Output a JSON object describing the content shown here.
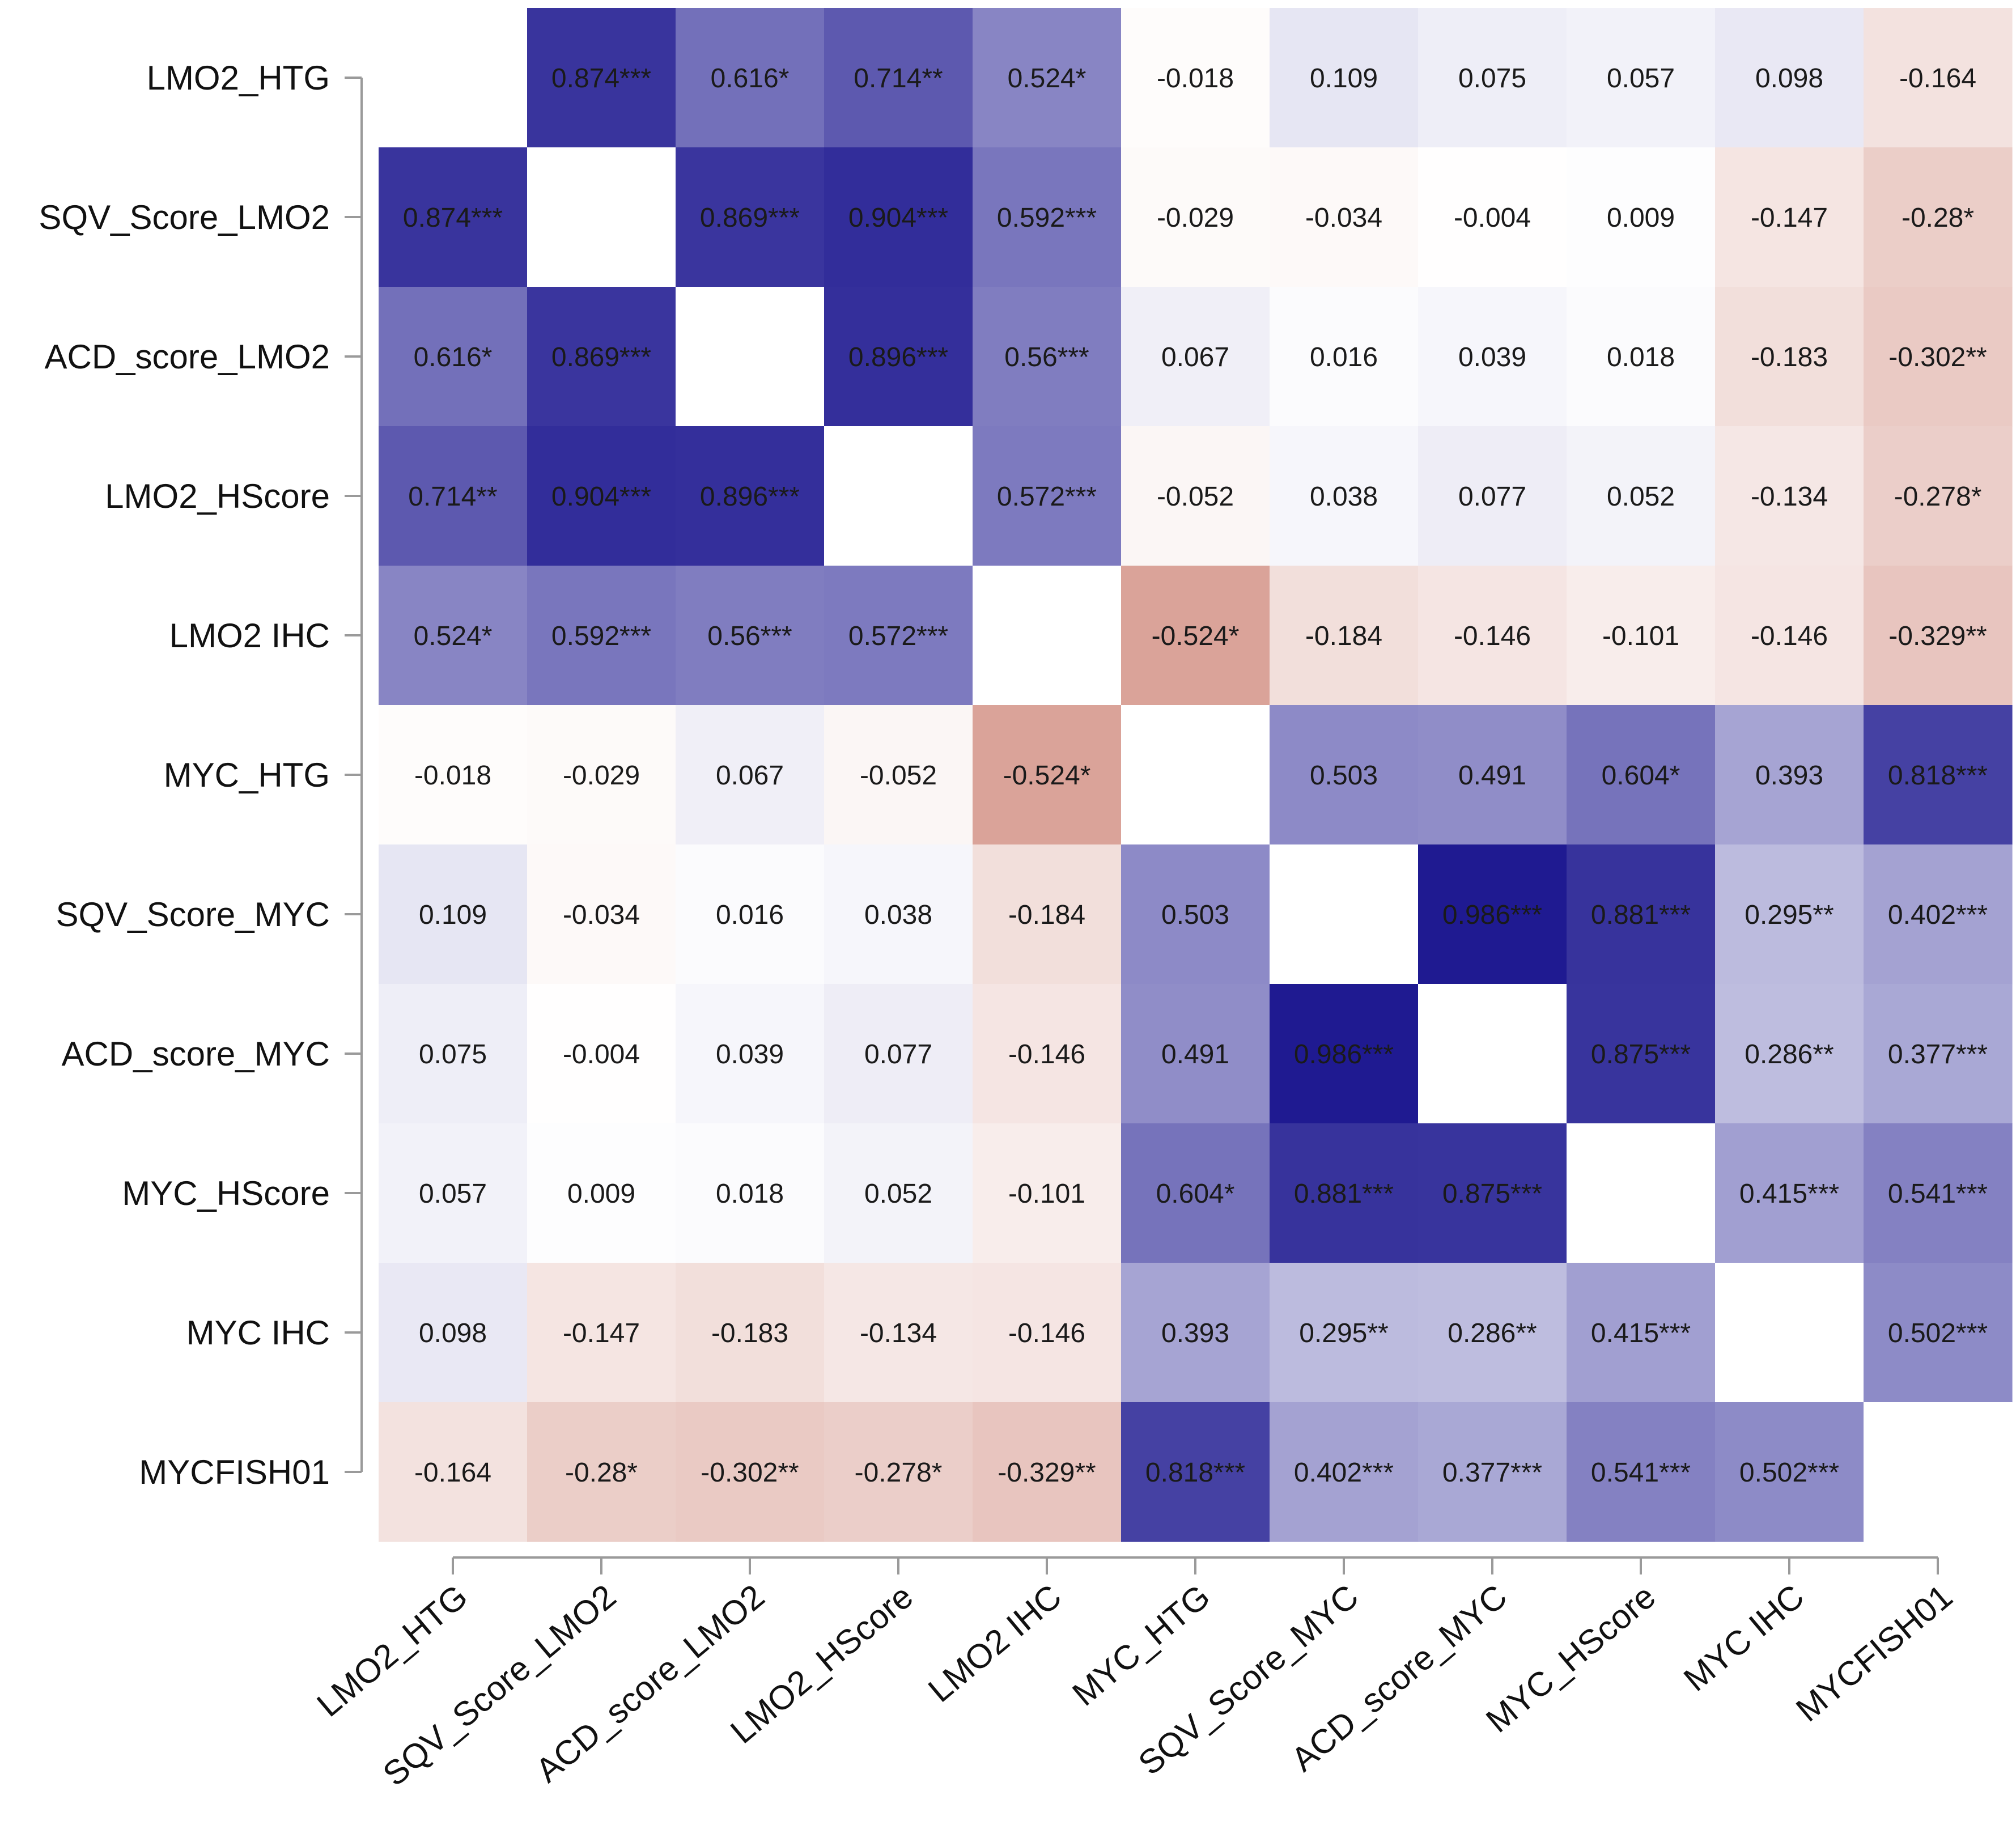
{
  "chart_data": {
    "type": "heatmap",
    "title": "",
    "xlabel": "",
    "ylabel": "",
    "color_scale": {
      "min": -1,
      "max": 1,
      "negative_color": "#b84f3c",
      "zero_color": "#ffffff",
      "positive_color": "#1c178f"
    },
    "labels": [
      "LMO2_HTG",
      "SQV_Score_LMO2",
      "ACD_score_LMO2",
      "LMO2_HScore",
      "LMO2 IHC",
      "MYC_HTG",
      "SQV_Score_MYC",
      "ACD_score_MYC",
      "MYC_HScore",
      "MYC IHC",
      "MYCFISH01"
    ],
    "values": [
      [
        null,
        0.874,
        0.616,
        0.714,
        0.524,
        -0.018,
        0.109,
        0.075,
        0.057,
        0.098,
        -0.164
      ],
      [
        0.874,
        null,
        0.869,
        0.904,
        0.592,
        -0.029,
        -0.034,
        -0.004,
        0.009,
        -0.147,
        -0.28
      ],
      [
        0.616,
        0.869,
        null,
        0.896,
        0.56,
        0.067,
        0.016,
        0.039,
        0.018,
        -0.183,
        -0.302
      ],
      [
        0.714,
        0.904,
        0.896,
        null,
        0.572,
        -0.052,
        0.038,
        0.077,
        0.052,
        -0.134,
        -0.278
      ],
      [
        0.524,
        0.592,
        0.56,
        0.572,
        null,
        -0.524,
        -0.184,
        -0.146,
        -0.101,
        -0.146,
        -0.329
      ],
      [
        -0.018,
        -0.029,
        0.067,
        -0.052,
        -0.524,
        null,
        0.503,
        0.491,
        0.604,
        0.393,
        0.818
      ],
      [
        0.109,
        -0.034,
        0.016,
        0.038,
        -0.184,
        0.503,
        null,
        0.986,
        0.881,
        0.295,
        0.402
      ],
      [
        0.075,
        -0.004,
        0.039,
        0.077,
        -0.146,
        0.491,
        0.986,
        null,
        0.875,
        0.286,
        0.377
      ],
      [
        0.057,
        0.009,
        0.018,
        0.052,
        -0.101,
        0.604,
        0.881,
        0.875,
        null,
        0.415,
        0.541
      ],
      [
        0.098,
        -0.147,
        -0.183,
        -0.134,
        -0.146,
        0.393,
        0.295,
        0.286,
        0.415,
        null,
        0.502
      ],
      [
        -0.164,
        -0.28,
        -0.302,
        -0.278,
        -0.329,
        0.818,
        0.402,
        0.377,
        0.541,
        0.502,
        null
      ]
    ],
    "cell_labels": [
      [
        "",
        "0.874***",
        "0.616*",
        "0.714**",
        "0.524*",
        "-0.018",
        "0.109",
        "0.075",
        "0.057",
        "0.098",
        "-0.164"
      ],
      [
        "0.874***",
        "",
        "0.869***",
        "0.904***",
        "0.592***",
        "-0.029",
        "-0.034",
        "-0.004",
        "0.009",
        "-0.147",
        "-0.28*"
      ],
      [
        "0.616*",
        "0.869***",
        "",
        "0.896***",
        "0.56***",
        "0.067",
        "0.016",
        "0.039",
        "0.018",
        "-0.183",
        "-0.302**"
      ],
      [
        "0.714**",
        "0.904***",
        "0.896***",
        "",
        "0.572***",
        "-0.052",
        "0.038",
        "0.077",
        "0.052",
        "-0.134",
        "-0.278*"
      ],
      [
        "0.524*",
        "0.592***",
        "0.56***",
        "0.572***",
        "",
        "-0.524*",
        "-0.184",
        "-0.146",
        "-0.101",
        "-0.146",
        "-0.329**"
      ],
      [
        "-0.018",
        "-0.029",
        "0.067",
        "-0.052",
        "-0.524*",
        "",
        "0.503",
        "0.491",
        "0.604*",
        "0.393",
        "0.818***"
      ],
      [
        "0.109",
        "-0.034",
        "0.016",
        "0.038",
        "-0.184",
        "0.503",
        "",
        "0.986***",
        "0.881***",
        "0.295**",
        "0.402***"
      ],
      [
        "0.075",
        "-0.004",
        "0.039",
        "0.077",
        "-0.146",
        "0.491",
        "0.986***",
        "",
        "0.875***",
        "0.286**",
        "0.377***"
      ],
      [
        "0.057",
        "0.009",
        "0.018",
        "0.052",
        "-0.101",
        "0.604*",
        "0.881***",
        "0.875***",
        "",
        "0.415***",
        "0.541***"
      ],
      [
        "0.098",
        "-0.147",
        "-0.183",
        "-0.134",
        "-0.146",
        "0.393",
        "0.295**",
        "0.286**",
        "0.415***",
        "",
        "0.502***"
      ],
      [
        "-0.164",
        "-0.28*",
        "-0.302**",
        "-0.278*",
        "-0.329**",
        "0.818***",
        "0.402***",
        "0.377***",
        "0.541***",
        "0.502***",
        ""
      ]
    ],
    "legend": "none",
    "grid": false
  }
}
